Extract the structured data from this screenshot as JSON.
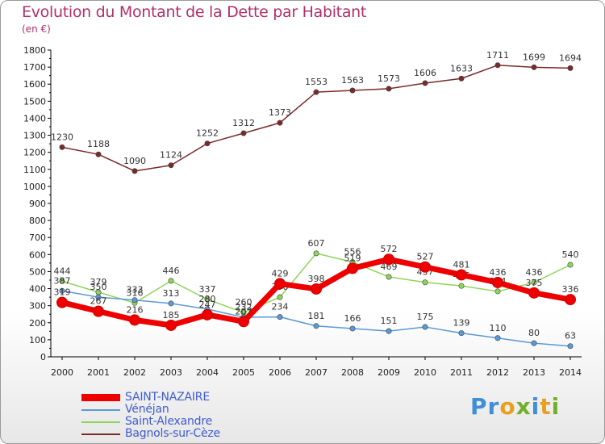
{
  "title": "Evolution du Montant de la Dette par Habitant",
  "unit": "(en €)",
  "brand": "Proxiti",
  "chart_data": {
    "type": "line",
    "x": [
      "2000",
      "2001",
      "2002",
      "2003",
      "2004",
      "2005",
      "2006",
      "2007",
      "2008",
      "2009",
      "2010",
      "2011",
      "2012",
      "2013",
      "2014"
    ],
    "ylim": [
      0,
      1800
    ],
    "yticks": [
      0,
      100,
      200,
      300,
      400,
      500,
      600,
      700,
      800,
      900,
      1000,
      1100,
      1200,
      1300,
      1400,
      1500,
      1600,
      1700,
      1800
    ],
    "grid": false,
    "legend": "bottom-left",
    "series": [
      {
        "name": "SAINT-NAZAIRE",
        "color": "#ee0000",
        "values": [
          319,
          267,
          216,
          185,
          247,
          207,
          429,
          398,
          519,
          572,
          527,
          481,
          436,
          375,
          336
        ]
      },
      {
        "name": "Vénéjan",
        "color": "#5a9ad5",
        "values": [
          387,
          350,
          333,
          313,
          280,
          232,
          234,
          181,
          166,
          151,
          175,
          139,
          110,
          80,
          63
        ]
      },
      {
        "name": "Saint-Alexandre",
        "color": "#8fd45a",
        "values": [
          444,
          379,
          316,
          446,
          337,
          260,
          350,
          607,
          556,
          469,
          437,
          416,
          384,
          436,
          540
        ]
      },
      {
        "name": "Bagnols-sur-Cèze",
        "color": "#7a2a2a",
        "values": [
          1230,
          1188,
          1090,
          1124,
          1252,
          1312,
          1373,
          1553,
          1563,
          1573,
          1606,
          1633,
          1711,
          1699,
          1694
        ]
      }
    ]
  }
}
